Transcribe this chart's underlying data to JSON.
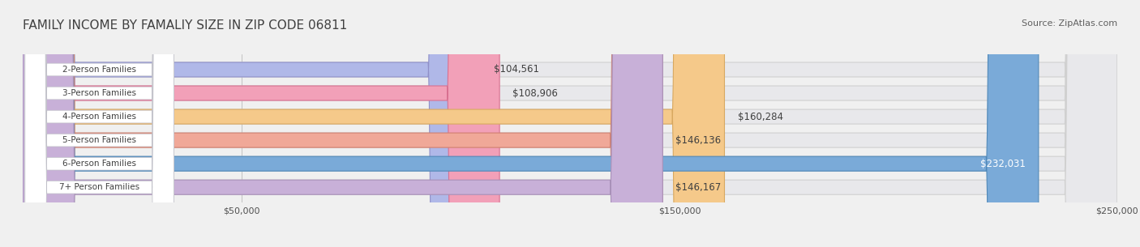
{
  "title": "FAMILY INCOME BY FAMALIY SIZE IN ZIP CODE 06811",
  "source": "Source: ZipAtlas.com",
  "categories": [
    "2-Person Families",
    "3-Person Families",
    "4-Person Families",
    "5-Person Families",
    "6-Person Families",
    "7+ Person Families"
  ],
  "values": [
    104561,
    108906,
    160284,
    146136,
    232031,
    146167
  ],
  "labels": [
    "$104,561",
    "$108,906",
    "$160,284",
    "$146,136",
    "$232,031",
    "$146,167"
  ],
  "bar_colors": [
    "#b0b8e8",
    "#f2a0b8",
    "#f5c98a",
    "#f0a898",
    "#7aaad8",
    "#c8b0d8"
  ],
  "bar_edge_colors": [
    "#9090c8",
    "#d87090",
    "#d8a860",
    "#d08070",
    "#5088b8",
    "#a890b8"
  ],
  "background_color": "#f0f0f0",
  "bar_bg_color": "#e8e8e8",
  "label_bg_color": "#ffffff",
  "xlim": [
    0,
    250000
  ],
  "xticks": [
    50000,
    150000,
    250000
  ],
  "xticklabels": [
    "$50,000",
    "$150,000",
    "$250,000"
  ],
  "title_fontsize": 11,
  "source_fontsize": 8,
  "bar_height": 0.62,
  "label_fontsize": 8.5,
  "cat_fontsize": 7.5
}
